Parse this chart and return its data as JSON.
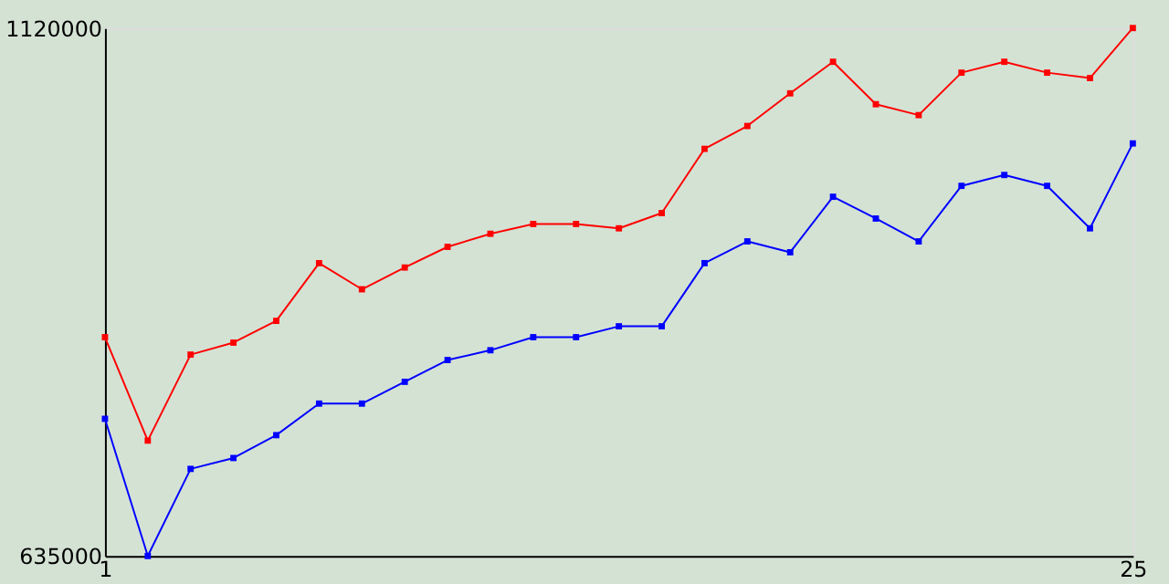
{
  "chart_data": {
    "type": "line",
    "x": [
      1,
      2,
      3,
      4,
      5,
      6,
      7,
      8,
      9,
      10,
      11,
      12,
      13,
      14,
      15,
      16,
      17,
      18,
      19,
      20,
      21,
      22,
      23,
      24,
      25
    ],
    "series": [
      {
        "color": "#ff0000",
        "values": [
          836000,
          741000,
          820000,
          831000,
          851000,
          904000,
          880000,
          900000,
          919000,
          931000,
          940000,
          940000,
          936000,
          950000,
          1009000,
          1030000,
          1060000,
          1089000,
          1050000,
          1040000,
          1079000,
          1089000,
          1079000,
          1074000,
          1120000
        ]
      },
      {
        "color": "#0000ff",
        "values": [
          761000,
          635000,
          715000,
          725000,
          746000,
          775000,
          775000,
          795000,
          815000,
          824000,
          836000,
          836000,
          846000,
          846000,
          904000,
          924000,
          914000,
          965000,
          945000,
          924000,
          975000,
          985000,
          975000,
          936000,
          1014000
        ]
      }
    ],
    "xlim": [
      1,
      25
    ],
    "xticks": [
      1,
      25
    ],
    "ylim": [
      635000,
      1120000
    ],
    "yticks": [
      635000,
      1120000
    ],
    "legend": false,
    "marker": "square",
    "line_style": "solid"
  }
}
